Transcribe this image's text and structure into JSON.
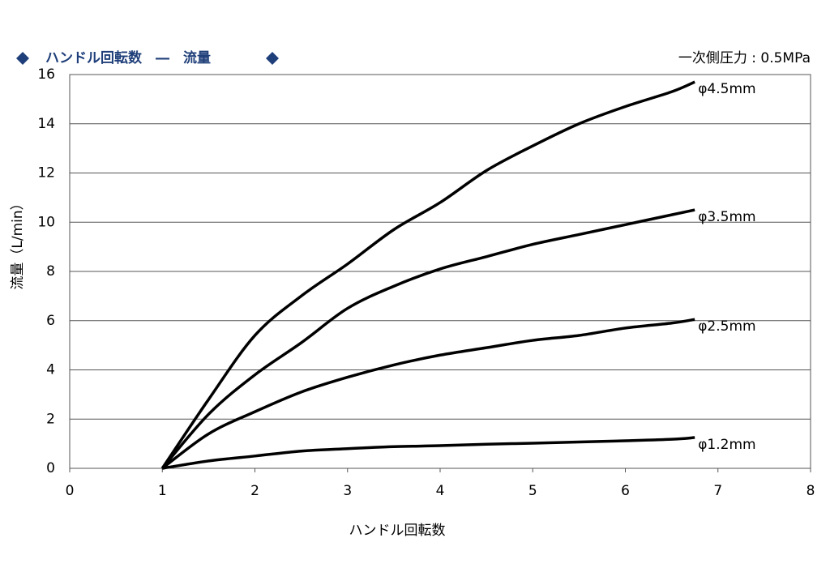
{
  "chart_data": {
    "type": "line",
    "title": "ハンドル回転数　―　流量",
    "annotation": "一次側圧力 : 0.5MPa",
    "x_label": "ハンドル回転数",
    "y_label": "流量（L/min）",
    "x": [
      1,
      1.5,
      2,
      2.5,
      3,
      3.5,
      4,
      4.5,
      5,
      5.5,
      6,
      6.5,
      6.75
    ],
    "series": [
      {
        "name": "φ4.5mm",
        "color": "#000000",
        "values": [
          0,
          2.8,
          5.4,
          7.0,
          8.3,
          9.7,
          10.8,
          12.1,
          13.1,
          14.0,
          14.7,
          15.3,
          15.7
        ]
      },
      {
        "name": "φ3.5mm",
        "color": "#000000",
        "values": [
          0,
          2.2,
          3.8,
          5.1,
          6.5,
          7.4,
          8.1,
          8.6,
          9.1,
          9.5,
          9.9,
          10.3,
          10.5
        ]
      },
      {
        "name": "φ2.5mm",
        "color": "#000000",
        "values": [
          0,
          1.4,
          2.3,
          3.1,
          3.7,
          4.2,
          4.6,
          4.9,
          5.2,
          5.4,
          5.7,
          5.9,
          6.05
        ]
      },
      {
        "name": "φ1.2mm",
        "color": "#000000",
        "values": [
          0,
          0.3,
          0.5,
          0.7,
          0.8,
          0.88,
          0.92,
          0.98,
          1.02,
          1.07,
          1.12,
          1.18,
          1.25
        ]
      }
    ],
    "xlim": [
      0,
      8
    ],
    "xticks": [
      0,
      1,
      2,
      3,
      4,
      5,
      6,
      7,
      8
    ],
    "ylim": [
      0,
      16
    ],
    "yticks": [
      0,
      2,
      4,
      6,
      8,
      10,
      12,
      14,
      16
    ],
    "grid": true
  }
}
